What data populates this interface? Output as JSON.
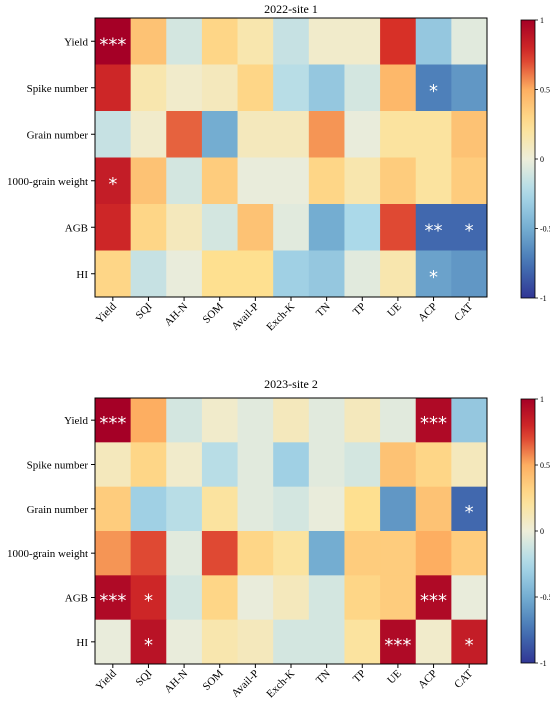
{
  "chart_data": [
    {
      "type": "heatmap",
      "title": "2022-site 1",
      "rows": [
        "Yield",
        "Spike number",
        "Grain number",
        "1000-grain weight",
        "AGB",
        "HI"
      ],
      "columns": [
        "Yield",
        "SQI",
        "AH-N",
        "SOM",
        "Avail-P",
        "Exch-K",
        "TN",
        "TP",
        "UE",
        "ACP",
        "CAT"
      ],
      "values": [
        [
          1.0,
          0.4,
          -0.1,
          0.3,
          0.15,
          -0.15,
          0.05,
          0.05,
          0.75,
          -0.35,
          -0.05
        ],
        [
          0.8,
          0.15,
          0.05,
          0.1,
          0.3,
          -0.2,
          -0.35,
          -0.1,
          0.45,
          -0.7,
          -0.6
        ],
        [
          -0.15,
          0.05,
          0.65,
          -0.5,
          0.1,
          0.1,
          0.55,
          -0.02,
          0.2,
          0.2,
          0.4
        ],
        [
          0.85,
          0.4,
          -0.1,
          0.35,
          -0.02,
          -0.02,
          0.3,
          0.15,
          0.35,
          0.2,
          0.35
        ],
        [
          0.8,
          0.3,
          0.1,
          -0.1,
          0.4,
          -0.05,
          -0.5,
          -0.25,
          0.7,
          -0.8,
          -0.8
        ],
        [
          0.3,
          -0.15,
          -0.02,
          0.25,
          0.25,
          -0.3,
          -0.35,
          -0.05,
          0.15,
          -0.55,
          -0.6
        ]
      ],
      "significance": [
        [
          "***",
          "",
          "",
          "",
          "",
          "",
          "",
          "",
          "",
          "",
          ""
        ],
        [
          "",
          "",
          "",
          "",
          "",
          "",
          "",
          "",
          "",
          "*",
          ""
        ],
        [
          "",
          "",
          "",
          "",
          "",
          "",
          "",
          "",
          "",
          "",
          ""
        ],
        [
          "*",
          "",
          "",
          "",
          "",
          "",
          "",
          "",
          "",
          "",
          ""
        ],
        [
          "",
          "",
          "",
          "",
          "",
          "",
          "",
          "",
          "",
          "**",
          "*"
        ],
        [
          "",
          "",
          "",
          "",
          "",
          "",
          "",
          "",
          "",
          "*",
          ""
        ]
      ],
      "colorbar": {
        "min": -1,
        "max": 1,
        "ticks": [
          "1",
          "0.5",
          "0",
          "-0.5",
          "-1"
        ]
      }
    },
    {
      "type": "heatmap",
      "title": "2023-site 2",
      "rows": [
        "Yield",
        "Spike number",
        "Grain number",
        "1000-grain weight",
        "AGB",
        "HI"
      ],
      "columns": [
        "Yield",
        "SQI",
        "AH-N",
        "SOM",
        "Avail-P",
        "Exch-K",
        "TN",
        "TP",
        "UE",
        "ACP",
        "CAT"
      ],
      "values": [
        [
          1.0,
          0.5,
          -0.1,
          0.05,
          -0.05,
          0.1,
          -0.05,
          0.1,
          -0.05,
          0.95,
          -0.35
        ],
        [
          0.1,
          0.3,
          0.05,
          -0.2,
          -0.05,
          -0.3,
          -0.05,
          -0.1,
          0.4,
          0.3,
          0.1
        ],
        [
          0.35,
          -0.3,
          -0.2,
          0.2,
          -0.05,
          -0.1,
          -0.02,
          0.25,
          -0.6,
          0.4,
          -0.8
        ],
        [
          0.55,
          0.7,
          -0.05,
          0.7,
          0.3,
          0.2,
          -0.5,
          0.35,
          0.35,
          0.5,
          0.35
        ],
        [
          0.95,
          0.8,
          -0.1,
          0.3,
          -0.02,
          0.1,
          -0.1,
          0.3,
          0.35,
          0.95,
          -0.02
        ],
        [
          -0.02,
          0.9,
          -0.02,
          0.15,
          0.1,
          -0.1,
          -0.1,
          0.2,
          0.95,
          0.05,
          0.85
        ]
      ],
      "significance": [
        [
          "***",
          "",
          "",
          "",
          "",
          "",
          "",
          "",
          "",
          "***",
          ""
        ],
        [
          "",
          "",
          "",
          "",
          "",
          "",
          "",
          "",
          "",
          "",
          ""
        ],
        [
          "",
          "",
          "",
          "",
          "",
          "",
          "",
          "",
          "",
          "",
          "*"
        ],
        [
          "",
          "",
          "",
          "",
          "",
          "",
          "",
          "",
          "",
          "",
          ""
        ],
        [
          "***",
          "*",
          "",
          "",
          "",
          "",
          "",
          "",
          "",
          "***",
          ""
        ],
        [
          "",
          "*",
          "",
          "",
          "",
          "",
          "",
          "",
          "***",
          "",
          "*"
        ]
      ],
      "colorbar": {
        "min": -1,
        "max": 1,
        "ticks": [
          "1",
          "0.5",
          "0",
          "-0.5",
          "-1"
        ]
      }
    }
  ]
}
